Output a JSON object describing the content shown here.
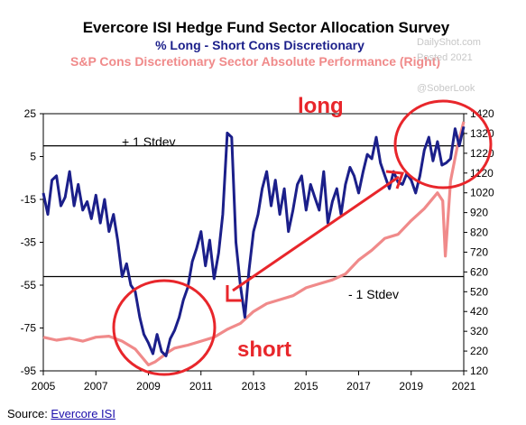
{
  "chart_data": {
    "type": "line",
    "title": "Evercore ISI Hedge Fund Sector Allocation Survey",
    "subtitle_left_series": "%  Long - Short Cons Discretionary",
    "subtitle_right_series": "S&P Cons Discretionary Sector Absolute Performance (Right)",
    "colors": {
      "left": "#1b1f8a",
      "right": "#f08a8a",
      "annotation": "#e8262b"
    },
    "x_ticks": [
      "2005",
      "2007",
      "2009",
      "2011",
      "2013",
      "2015",
      "2017",
      "2019",
      "2021"
    ],
    "x_range": [
      2005,
      2021
    ],
    "y_left_ticks": [
      25,
      5,
      -15,
      -35,
      -55,
      -75,
      -95
    ],
    "y_left_range": [
      -95,
      25
    ],
    "y_right_ticks": [
      1420,
      1320,
      1220,
      1120,
      1020,
      920,
      820,
      720,
      620,
      520,
      420,
      320,
      220,
      120
    ],
    "y_right_range": [
      120,
      1420
    ],
    "reference_lines": [
      {
        "value": 10,
        "label": "+ 1 Stdev"
      },
      {
        "value": -51,
        "label": "- 1 Stdev"
      }
    ],
    "series": [
      {
        "name": "%  Long - Short Cons Discretionary",
        "axis": "left",
        "x": [
          2005.0,
          2005.17,
          2005.33,
          2005.5,
          2005.67,
          2005.83,
          2006.0,
          2006.17,
          2006.33,
          2006.5,
          2006.67,
          2006.83,
          2007.0,
          2007.17,
          2007.33,
          2007.5,
          2007.67,
          2007.83,
          2008.0,
          2008.17,
          2008.33,
          2008.5,
          2008.67,
          2008.83,
          2009.0,
          2009.17,
          2009.33,
          2009.5,
          2009.67,
          2009.83,
          2010.0,
          2010.17,
          2010.33,
          2010.5,
          2010.67,
          2010.83,
          2011.0,
          2011.17,
          2011.33,
          2011.5,
          2011.67,
          2011.83,
          2012.0,
          2012.17,
          2012.33,
          2012.5,
          2012.67,
          2012.83,
          2013.0,
          2013.17,
          2013.33,
          2013.5,
          2013.67,
          2013.83,
          2014.0,
          2014.17,
          2014.33,
          2014.5,
          2014.67,
          2014.83,
          2015.0,
          2015.17,
          2015.33,
          2015.5,
          2015.67,
          2015.83,
          2016.0,
          2016.17,
          2016.33,
          2016.5,
          2016.67,
          2016.83,
          2017.0,
          2017.17,
          2017.33,
          2017.5,
          2017.67,
          2017.83,
          2018.0,
          2018.17,
          2018.33,
          2018.5,
          2018.67,
          2018.83,
          2019.0,
          2019.17,
          2019.33,
          2019.5,
          2019.67,
          2019.83,
          2020.0,
          2020.17,
          2020.33,
          2020.5,
          2020.67,
          2020.83,
          2021.0
        ],
        "values": [
          -12,
          -22,
          -6,
          -4,
          -18,
          -14,
          -2,
          -18,
          -8,
          -20,
          -16,
          -24,
          -13,
          -26,
          -15,
          -30,
          -22,
          -34,
          -51,
          -45,
          -55,
          -58,
          -70,
          -78,
          -82,
          -87,
          -78,
          -86,
          -88,
          -80,
          -76,
          -70,
          -62,
          -56,
          -44,
          -38,
          -30,
          -46,
          -34,
          -52,
          -40,
          -22,
          16,
          14,
          -35,
          -55,
          -70,
          -48,
          -30,
          -22,
          -10,
          -2,
          -18,
          -6,
          -22,
          -10,
          -30,
          -20,
          -8,
          -4,
          -20,
          -8,
          -14,
          -20,
          -2,
          -26,
          -16,
          -10,
          -22,
          -8,
          0,
          -4,
          -12,
          -2,
          6,
          4,
          14,
          2,
          -4,
          -10,
          -2,
          -7,
          -8,
          -3,
          -6,
          -12,
          -4,
          8,
          14,
          3,
          12,
          1,
          2,
          4,
          18,
          10,
          19
        ]
      },
      {
        "name": "S&P Cons Discretionary Sector Absolute Performance (Right)",
        "axis": "right",
        "x": [
          2005.0,
          2005.5,
          2006.0,
          2006.5,
          2007.0,
          2007.5,
          2008.0,
          2008.5,
          2009.0,
          2009.25,
          2009.5,
          2009.75,
          2010.0,
          2010.5,
          2011.0,
          2011.5,
          2012.0,
          2012.5,
          2013.0,
          2013.5,
          2014.0,
          2014.5,
          2015.0,
          2015.5,
          2016.0,
          2016.5,
          2017.0,
          2017.5,
          2018.0,
          2018.5,
          2019.0,
          2019.5,
          2020.0,
          2020.2,
          2020.3,
          2020.5,
          2020.75,
          2021.0
        ],
        "values": [
          290,
          275,
          285,
          270,
          290,
          295,
          270,
          230,
          150,
          165,
          190,
          215,
          235,
          250,
          270,
          290,
          330,
          360,
          420,
          460,
          480,
          500,
          540,
          560,
          580,
          610,
          680,
          730,
          790,
          810,
          880,
          940,
          1020,
          980,
          700,
          1080,
          1250,
          1380
        ]
      }
    ],
    "annotations": [
      "long",
      "short"
    ]
  },
  "watermarks": [
    "DailyShot.com",
    "Posted 2021",
    "@SoberLook"
  ],
  "source": {
    "prefix": "Source: ",
    "link": "Evercore ISI"
  }
}
